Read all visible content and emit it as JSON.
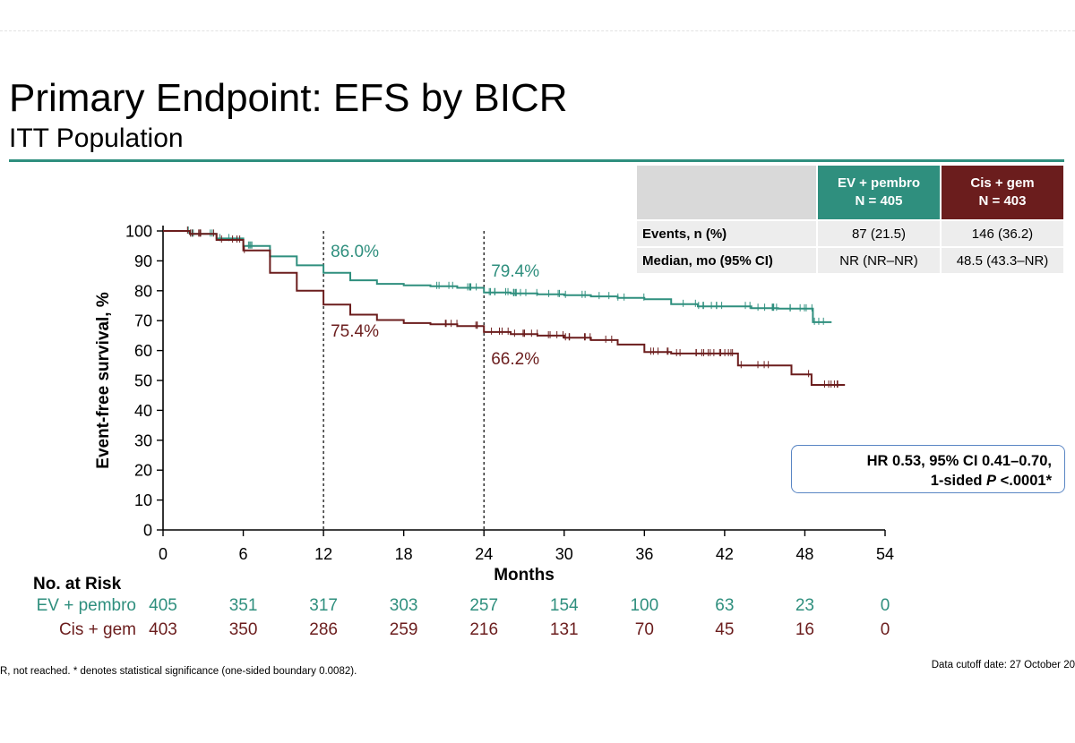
{
  "slide": {
    "title": "Primary Endpoint: EFS by BICR",
    "subtitle": "ITT Population",
    "rule_color": "#2f8f7e"
  },
  "summary_table": {
    "arms": [
      {
        "label_line1": "EV + pembro",
        "label_line2": "N = 405",
        "color": "#2f8f7e"
      },
      {
        "label_line1": "Cis + gem",
        "label_line2": "N = 403",
        "color": "#6b1d1d"
      }
    ],
    "rows": [
      {
        "label": "Events, n (%)",
        "values": [
          "87 (21.5)",
          "146 (36.2)"
        ]
      },
      {
        "label": "Median, mo (95% CI)",
        "values": [
          "NR (NR–NR)",
          "48.5 (43.3–NR)"
        ]
      }
    ]
  },
  "hr_box": {
    "line1": "HR 0.53, 95% CI 0.41–0.70,",
    "line2_prefix": "1-sided ",
    "line2_p": "P",
    "line2_suffix": " <.0001*"
  },
  "risk_table": {
    "header": "No. at Risk",
    "rows": [
      {
        "label": "EV + pembro",
        "color": "#2f8f7e",
        "values": [
          "405",
          "351",
          "317",
          "303",
          "257",
          "154",
          "100",
          "63",
          "23",
          "0"
        ]
      },
      {
        "label": "Cis + gem",
        "color": "#6b1d1d",
        "values": [
          "403",
          "350",
          "286",
          "259",
          "216",
          "131",
          "70",
          "45",
          "16",
          "0"
        ]
      }
    ]
  },
  "footnote": "R, not reached. * denotes statistical significance (one-sided boundary 0.0082).",
  "cutoff": "Data cutoff date: 27 October 20",
  "chart_data": {
    "type": "line",
    "title": "Primary Endpoint: EFS by BICR",
    "xlabel": "Months",
    "ylabel": "Event-free survival, %",
    "xlim": [
      0,
      54
    ],
    "ylim": [
      0,
      100
    ],
    "xticks": [
      0,
      6,
      12,
      18,
      24,
      30,
      36,
      42,
      48,
      54
    ],
    "yticks": [
      0,
      10,
      20,
      30,
      40,
      50,
      60,
      70,
      80,
      90,
      100
    ],
    "reference_lines_x": [
      12,
      24
    ],
    "series": [
      {
        "name": "EV + pembro",
        "color": "#2f8f7e",
        "points": [
          [
            0,
            100
          ],
          [
            2,
            99
          ],
          [
            4,
            97.5
          ],
          [
            6,
            95
          ],
          [
            8,
            91.5
          ],
          [
            10,
            88.5
          ],
          [
            12,
            86.0
          ],
          [
            14,
            83.5
          ],
          [
            16,
            82.3
          ],
          [
            18,
            81.8
          ],
          [
            20,
            81.5
          ],
          [
            22,
            81.0
          ],
          [
            24,
            79.4
          ],
          [
            26,
            79.1
          ],
          [
            28,
            78.8
          ],
          [
            30,
            78.5
          ],
          [
            32,
            78.1
          ],
          [
            34,
            77.6
          ],
          [
            36,
            77.2
          ],
          [
            38,
            75.5
          ],
          [
            40,
            74.8
          ],
          [
            42,
            74.8
          ],
          [
            44,
            74.2
          ],
          [
            46,
            74.0
          ],
          [
            48,
            74.0
          ],
          [
            48.6,
            69.5
          ],
          [
            50,
            69.5
          ]
        ],
        "censor_ranges": [
          [
            1.5,
            7
          ],
          [
            20,
            36
          ],
          [
            38,
            49
          ],
          [
            49,
            50
          ]
        ],
        "landmarks": [
          {
            "x": 12,
            "label": "86.0%"
          },
          {
            "x": 24,
            "label": "79.4%"
          }
        ]
      },
      {
        "name": "Cis + gem",
        "color": "#6b1d1d",
        "points": [
          [
            0,
            100
          ],
          [
            2,
            99
          ],
          [
            4,
            97
          ],
          [
            6,
            93.5
          ],
          [
            8,
            86
          ],
          [
            10,
            80
          ],
          [
            12,
            75.4
          ],
          [
            14,
            72
          ],
          [
            16,
            70.2
          ],
          [
            18,
            69.2
          ],
          [
            20,
            68.8
          ],
          [
            22,
            68.2
          ],
          [
            24,
            66.2
          ],
          [
            26,
            65.5
          ],
          [
            28,
            65
          ],
          [
            30,
            64.3
          ],
          [
            32,
            63.5
          ],
          [
            34,
            62
          ],
          [
            36,
            59.5
          ],
          [
            38,
            59
          ],
          [
            40,
            59
          ],
          [
            42,
            59
          ],
          [
            43,
            55
          ],
          [
            44,
            55
          ],
          [
            46,
            55
          ],
          [
            47,
            52
          ],
          [
            48,
            52
          ],
          [
            48.5,
            48.5
          ],
          [
            51,
            48.5
          ]
        ],
        "censor_ranges": [
          [
            1.5,
            7
          ],
          [
            21,
            34
          ],
          [
            36,
            47
          ],
          [
            48,
            51
          ]
        ],
        "landmarks": [
          {
            "x": 12,
            "label": "75.4%"
          },
          {
            "x": 24,
            "label": "66.2%"
          }
        ]
      }
    ]
  }
}
